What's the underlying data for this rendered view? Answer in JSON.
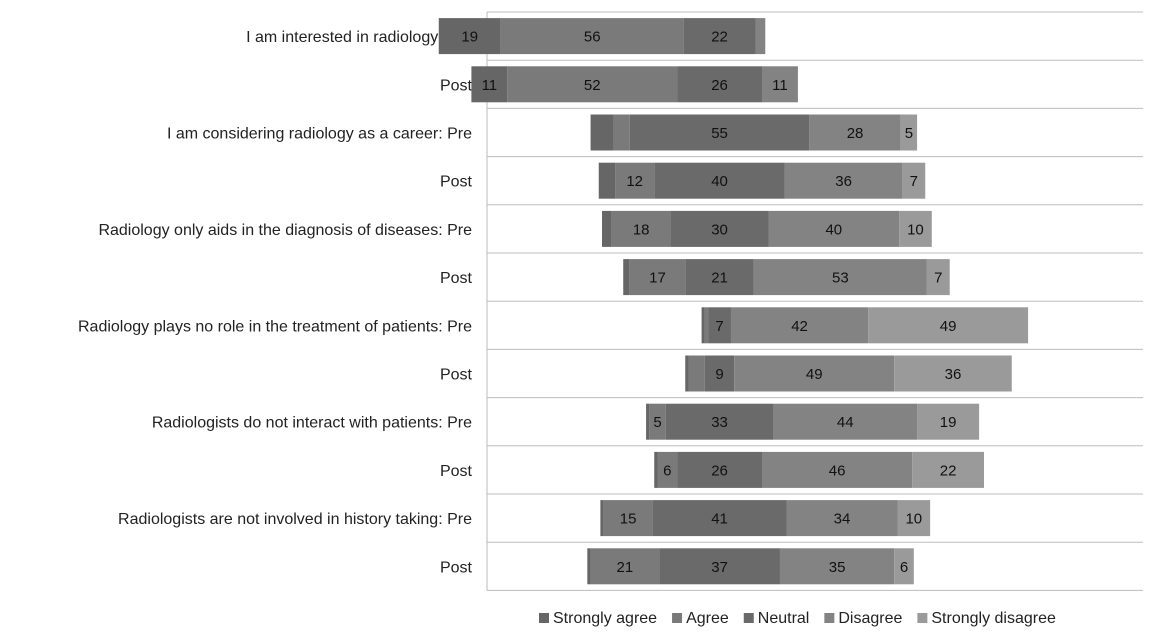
{
  "chart_data": {
    "type": "bar",
    "orientation": "horizontal",
    "stacked": true,
    "diverging": true,
    "categories": [
      "I am interested in radiology: Pre",
      "Post",
      "I am considering radiology as a career: Pre",
      "Post",
      "Radiology only aids in the diagnosis of diseases: Pre",
      "Post",
      "Radiology plays no role in the treatment of patients: Pre",
      "Post",
      "Radiologists do not interact with patients: Pre",
      "Post",
      "Radiologists are not involved in history taking: Pre",
      "Post"
    ],
    "series": [
      {
        "name": "Strongly agree",
        "color": "#666666",
        "values": [
          19,
          11,
          7,
          5,
          3,
          2,
          1,
          1,
          1,
          1,
          1,
          1
        ]
      },
      {
        "name": "Agree",
        "color": "#7a7a7a",
        "values": [
          56,
          52,
          5,
          12,
          18,
          17,
          1,
          5,
          5,
          6,
          15,
          21
        ]
      },
      {
        "name": "Neutral",
        "color": "#6a6a6a",
        "values": [
          22,
          26,
          55,
          40,
          30,
          21,
          7,
          9,
          33,
          26,
          41,
          37
        ]
      },
      {
        "name": "Disagree",
        "color": "#838383",
        "values": [
          3,
          11,
          28,
          36,
          40,
          53,
          42,
          49,
          44,
          46,
          34,
          35
        ]
      },
      {
        "name": "Strongly disagree",
        "color": "#9a9a9a",
        "values": [
          0,
          0,
          5,
          7,
          10,
          7,
          49,
          36,
          19,
          22,
          10,
          6
        ]
      }
    ],
    "data_labels": [
      [
        "19",
        "56",
        "22",
        "",
        ""
      ],
      [
        "11",
        "52",
        "26",
        "11",
        ""
      ],
      [
        "",
        "",
        "55",
        "28",
        "5"
      ],
      [
        "",
        "12",
        "40",
        "36",
        "7"
      ],
      [
        "",
        "18",
        "30",
        "40",
        "10"
      ],
      [
        "",
        "17",
        "21",
        "53",
        "7"
      ],
      [
        "",
        "",
        "7",
        "42",
        "49"
      ],
      [
        "",
        "",
        "9",
        "49",
        "36"
      ],
      [
        "",
        "5",
        "33",
        "44",
        "19"
      ],
      [
        "",
        "6",
        "26",
        "46",
        "22"
      ],
      [
        "",
        "15",
        "41",
        "34",
        "10"
      ],
      [
        "",
        "21",
        "37",
        "35",
        "6"
      ]
    ],
    "xlim": [
      -70,
      100
    ],
    "grid": true,
    "legend_position": "bottom"
  }
}
